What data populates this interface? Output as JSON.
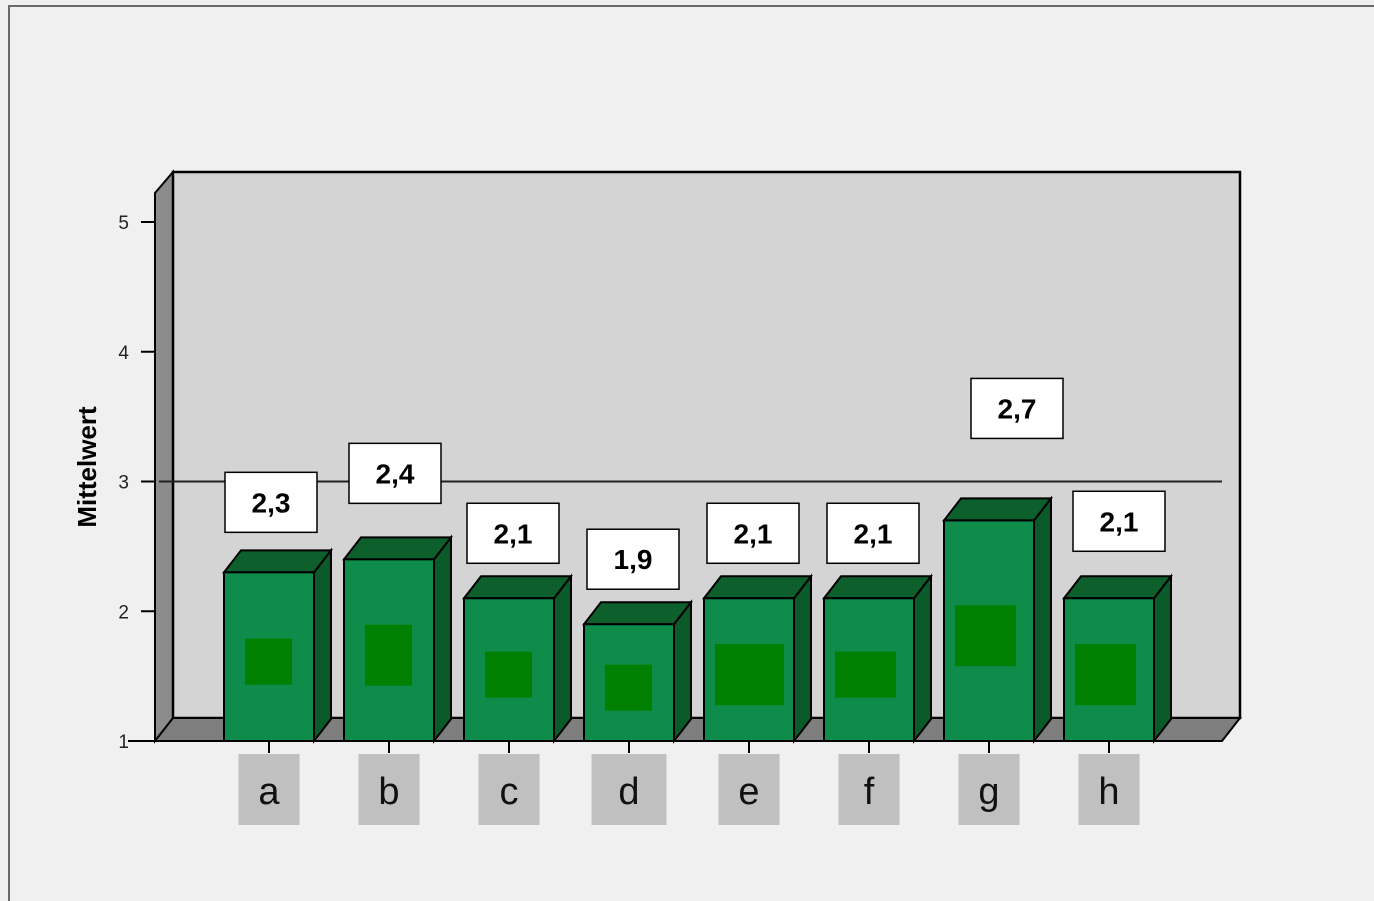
{
  "chart_data": {
    "type": "bar",
    "ylabel": "Mittelwert",
    "xlabel": "",
    "ylim": [
      1,
      5
    ],
    "yticks": [
      "1",
      "2",
      "3",
      "4",
      "5"
    ],
    "reference_line": 3,
    "categories": [
      "a",
      "b",
      "c",
      "d",
      "e",
      "f",
      "g",
      "h"
    ],
    "values": [
      2.3,
      2.4,
      2.1,
      1.9,
      2.1,
      2.1,
      2.7,
      2.1
    ],
    "data_labels": [
      "2,3",
      "2,4",
      "2,1",
      "1,9",
      "2,1",
      "2,1",
      "2,7",
      "2,1"
    ],
    "three_d": true,
    "grid": false,
    "colors": {
      "bar_front": "#108c4a",
      "bar_top": "#0d5f2b",
      "bar_side": "#0a5a2a",
      "bar_patch": "#007f00",
      "plot_back": "#d4d4d4",
      "plot_side": "#8c8c8c",
      "floor": "#7e7e7e",
      "category_box": "#c0c0c0",
      "label_box": "#ffffff"
    }
  }
}
